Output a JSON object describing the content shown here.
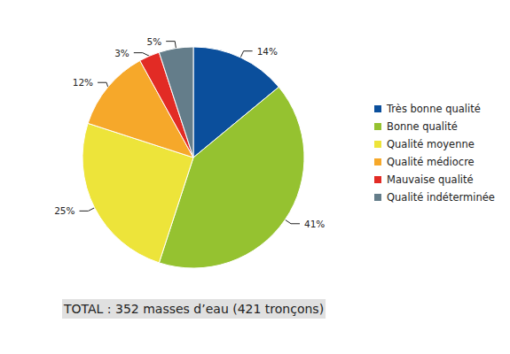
{
  "chart_data": {
    "type": "pie",
    "annotation": "TOTAL : 352 masses d’eau (421 tronçons)",
    "categories": [
      "Très bonne qualité",
      "Bonne qualité",
      "Qualité moyenne",
      "Qualité médiocre",
      "Mauvaise qualité",
      "Qualité indéterminée"
    ],
    "values": [
      14,
      41,
      25,
      12,
      3,
      5
    ],
    "value_labels": [
      "14%",
      "41%",
      "25%",
      "12%",
      "3%",
      "5%"
    ],
    "colors": [
      "#0b4f9c",
      "#95c230",
      "#ede43a",
      "#f6a82a",
      "#e22b25",
      "#647d8a"
    ],
    "data_labels": true,
    "legend": "right"
  }
}
